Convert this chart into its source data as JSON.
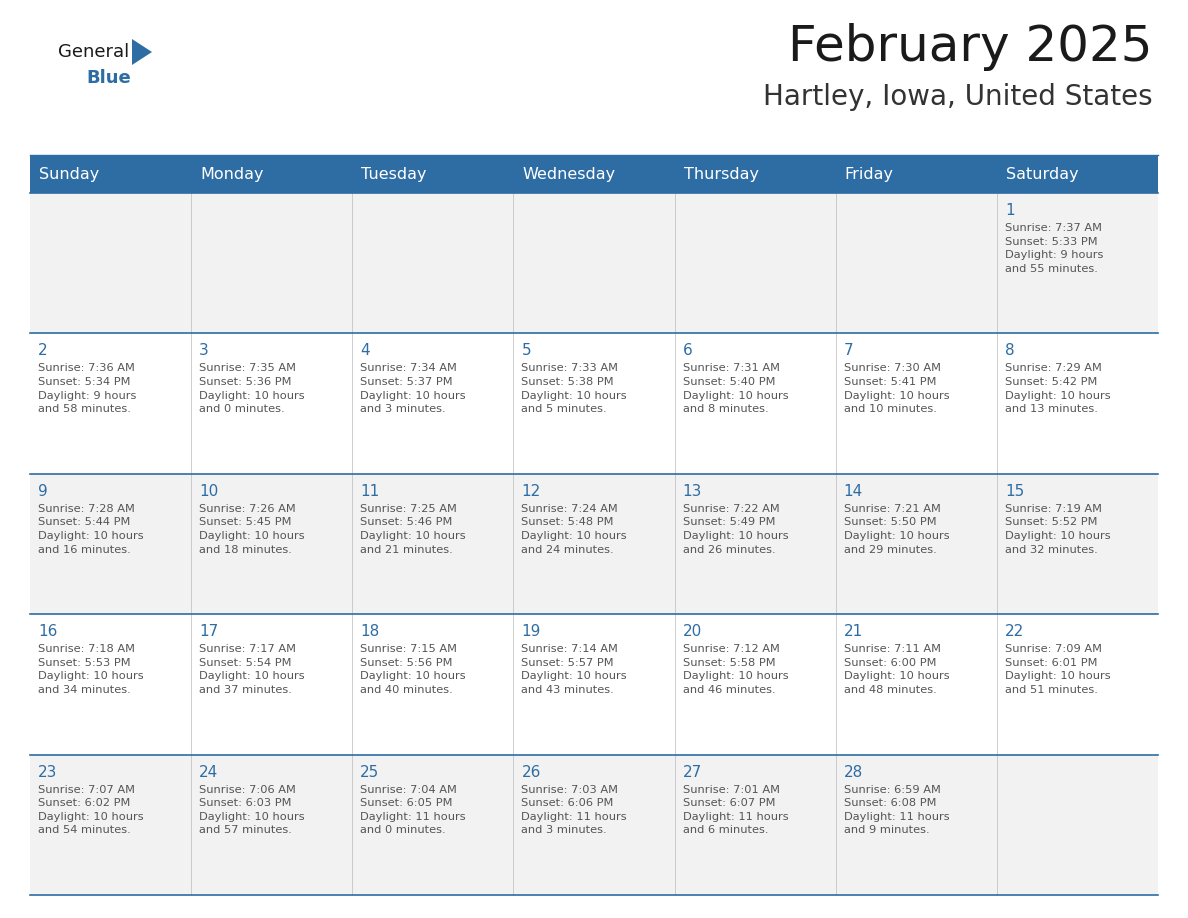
{
  "title": "February 2025",
  "subtitle": "Hartley, Iowa, United States",
  "header_bg": "#2E6DA4",
  "header_text_color": "#FFFFFF",
  "cell_bg_even": "#F2F2F2",
  "cell_bg_odd": "#FFFFFF",
  "grid_color": "#2E6DA4",
  "day_number_color": "#2E6DA4",
  "info_text_color": "#555555",
  "days_of_week": [
    "Sunday",
    "Monday",
    "Tuesday",
    "Wednesday",
    "Thursday",
    "Friday",
    "Saturday"
  ],
  "logo_general_color": "#1a1a1a",
  "logo_blue_color": "#2E6DA4",
  "weeks": [
    [
      {
        "day": null,
        "info": ""
      },
      {
        "day": null,
        "info": ""
      },
      {
        "day": null,
        "info": ""
      },
      {
        "day": null,
        "info": ""
      },
      {
        "day": null,
        "info": ""
      },
      {
        "day": null,
        "info": ""
      },
      {
        "day": 1,
        "info": "Sunrise: 7:37 AM\nSunset: 5:33 PM\nDaylight: 9 hours\nand 55 minutes."
      }
    ],
    [
      {
        "day": 2,
        "info": "Sunrise: 7:36 AM\nSunset: 5:34 PM\nDaylight: 9 hours\nand 58 minutes."
      },
      {
        "day": 3,
        "info": "Sunrise: 7:35 AM\nSunset: 5:36 PM\nDaylight: 10 hours\nand 0 minutes."
      },
      {
        "day": 4,
        "info": "Sunrise: 7:34 AM\nSunset: 5:37 PM\nDaylight: 10 hours\nand 3 minutes."
      },
      {
        "day": 5,
        "info": "Sunrise: 7:33 AM\nSunset: 5:38 PM\nDaylight: 10 hours\nand 5 minutes."
      },
      {
        "day": 6,
        "info": "Sunrise: 7:31 AM\nSunset: 5:40 PM\nDaylight: 10 hours\nand 8 minutes."
      },
      {
        "day": 7,
        "info": "Sunrise: 7:30 AM\nSunset: 5:41 PM\nDaylight: 10 hours\nand 10 minutes."
      },
      {
        "day": 8,
        "info": "Sunrise: 7:29 AM\nSunset: 5:42 PM\nDaylight: 10 hours\nand 13 minutes."
      }
    ],
    [
      {
        "day": 9,
        "info": "Sunrise: 7:28 AM\nSunset: 5:44 PM\nDaylight: 10 hours\nand 16 minutes."
      },
      {
        "day": 10,
        "info": "Sunrise: 7:26 AM\nSunset: 5:45 PM\nDaylight: 10 hours\nand 18 minutes."
      },
      {
        "day": 11,
        "info": "Sunrise: 7:25 AM\nSunset: 5:46 PM\nDaylight: 10 hours\nand 21 minutes."
      },
      {
        "day": 12,
        "info": "Sunrise: 7:24 AM\nSunset: 5:48 PM\nDaylight: 10 hours\nand 24 minutes."
      },
      {
        "day": 13,
        "info": "Sunrise: 7:22 AM\nSunset: 5:49 PM\nDaylight: 10 hours\nand 26 minutes."
      },
      {
        "day": 14,
        "info": "Sunrise: 7:21 AM\nSunset: 5:50 PM\nDaylight: 10 hours\nand 29 minutes."
      },
      {
        "day": 15,
        "info": "Sunrise: 7:19 AM\nSunset: 5:52 PM\nDaylight: 10 hours\nand 32 minutes."
      }
    ],
    [
      {
        "day": 16,
        "info": "Sunrise: 7:18 AM\nSunset: 5:53 PM\nDaylight: 10 hours\nand 34 minutes."
      },
      {
        "day": 17,
        "info": "Sunrise: 7:17 AM\nSunset: 5:54 PM\nDaylight: 10 hours\nand 37 minutes."
      },
      {
        "day": 18,
        "info": "Sunrise: 7:15 AM\nSunset: 5:56 PM\nDaylight: 10 hours\nand 40 minutes."
      },
      {
        "day": 19,
        "info": "Sunrise: 7:14 AM\nSunset: 5:57 PM\nDaylight: 10 hours\nand 43 minutes."
      },
      {
        "day": 20,
        "info": "Sunrise: 7:12 AM\nSunset: 5:58 PM\nDaylight: 10 hours\nand 46 minutes."
      },
      {
        "day": 21,
        "info": "Sunrise: 7:11 AM\nSunset: 6:00 PM\nDaylight: 10 hours\nand 48 minutes."
      },
      {
        "day": 22,
        "info": "Sunrise: 7:09 AM\nSunset: 6:01 PM\nDaylight: 10 hours\nand 51 minutes."
      }
    ],
    [
      {
        "day": 23,
        "info": "Sunrise: 7:07 AM\nSunset: 6:02 PM\nDaylight: 10 hours\nand 54 minutes."
      },
      {
        "day": 24,
        "info": "Sunrise: 7:06 AM\nSunset: 6:03 PM\nDaylight: 10 hours\nand 57 minutes."
      },
      {
        "day": 25,
        "info": "Sunrise: 7:04 AM\nSunset: 6:05 PM\nDaylight: 11 hours\nand 0 minutes."
      },
      {
        "day": 26,
        "info": "Sunrise: 7:03 AM\nSunset: 6:06 PM\nDaylight: 11 hours\nand 3 minutes."
      },
      {
        "day": 27,
        "info": "Sunrise: 7:01 AM\nSunset: 6:07 PM\nDaylight: 11 hours\nand 6 minutes."
      },
      {
        "day": 28,
        "info": "Sunrise: 6:59 AM\nSunset: 6:08 PM\nDaylight: 11 hours\nand 9 minutes."
      },
      {
        "day": null,
        "info": ""
      }
    ]
  ]
}
